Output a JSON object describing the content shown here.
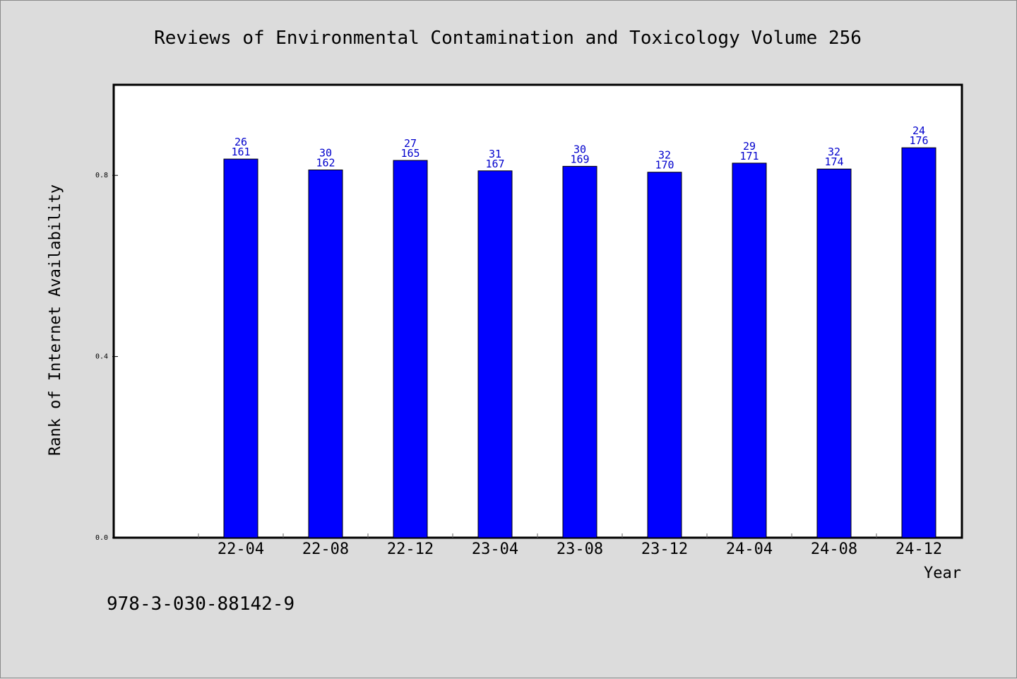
{
  "chart_data": {
    "type": "bar",
    "title": "Reviews of Environmental Contamination and Toxicology Volume 256",
    "xlabel": "Year",
    "ylabel": "Rank of Internet Availability",
    "ylim": [
      0.0,
      1.0
    ],
    "yticks": [
      "0.0",
      "0.4",
      "0.8"
    ],
    "grid": false,
    "legend": "none",
    "categories": [
      "22-04",
      "22-08",
      "22-12",
      "23-04",
      "23-08",
      "23-12",
      "24-04",
      "24-08",
      "24-12"
    ],
    "values": [
      0.836,
      0.812,
      0.833,
      0.81,
      0.82,
      0.807,
      0.827,
      0.814,
      0.861
    ],
    "labels_top": [
      "26",
      "30",
      "27",
      "31",
      "30",
      "32",
      "29",
      "32",
      "24"
    ],
    "labels_bottom": [
      "161",
      "162",
      "165",
      "167",
      "169",
      "170",
      "171",
      "174",
      "176"
    ],
    "colors": {
      "bar": "#0000ff",
      "bar_stroke": "#000000",
      "label": "#0000cc",
      "plot_bg": "#ffffff",
      "page_bg": "#dcdcdc"
    }
  },
  "footer": {
    "isbn": "978-3-030-88142-9"
  }
}
